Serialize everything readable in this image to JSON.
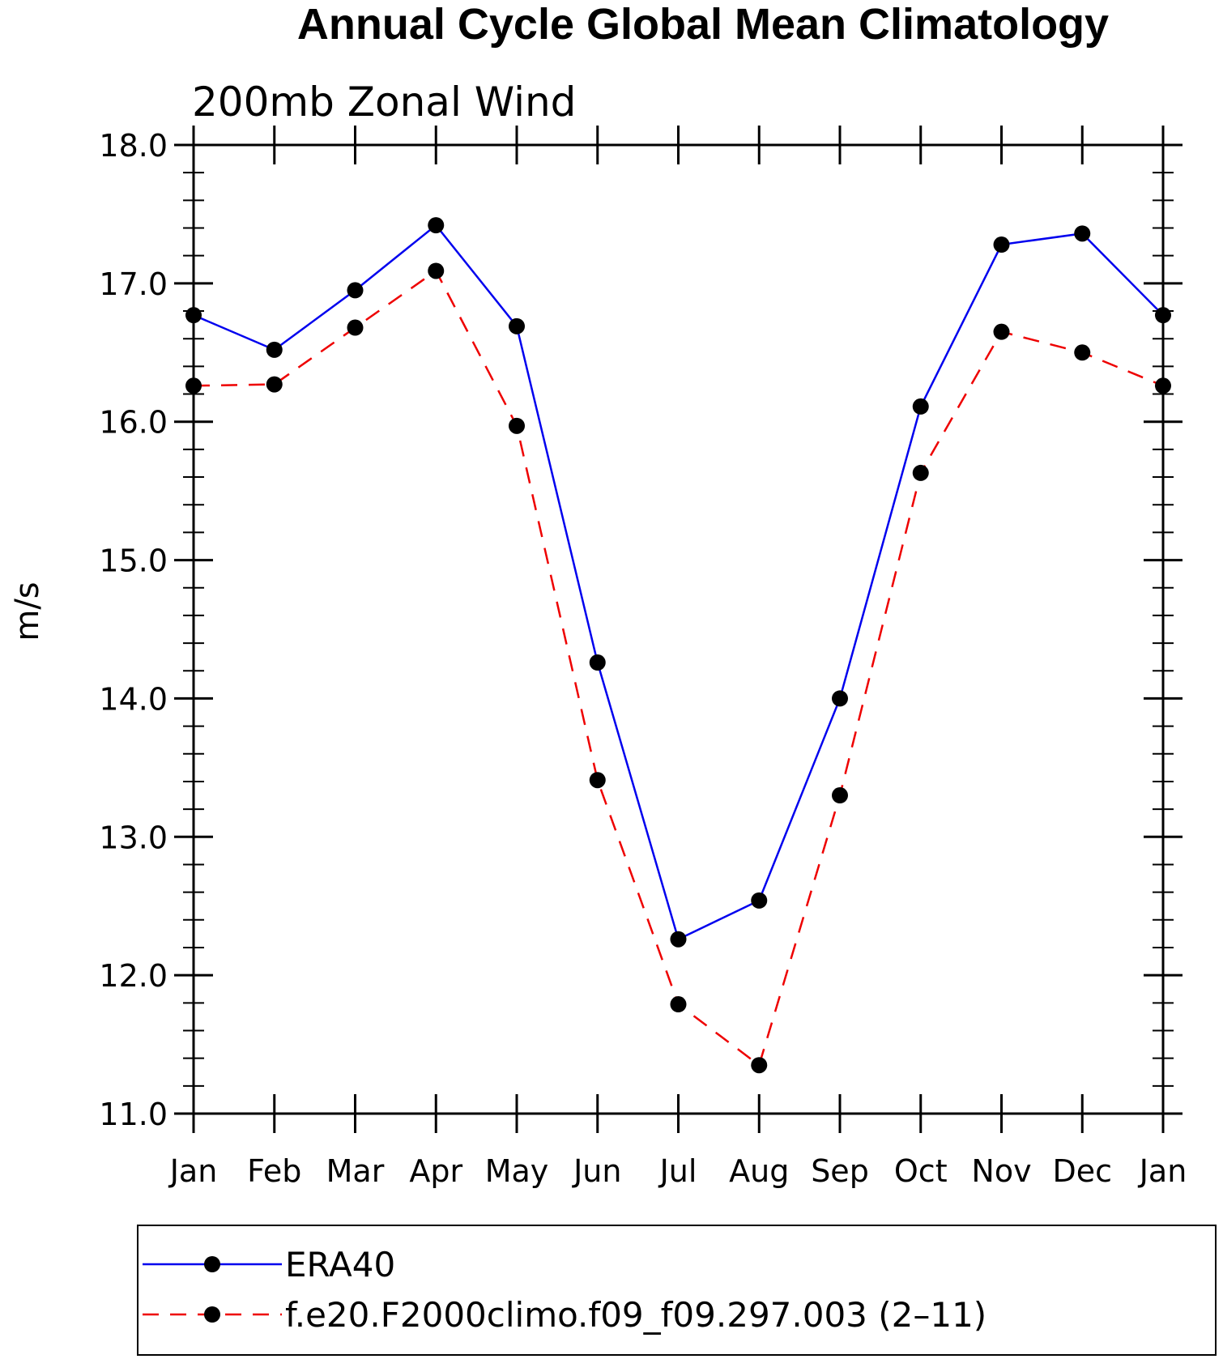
{
  "chart_data": {
    "type": "line",
    "title": "Annual Cycle Global Mean Climatology",
    "subtitle": "200mb Zonal Wind",
    "ylabel": "m/s",
    "xlabel": "",
    "ylim": [
      11.0,
      18.0
    ],
    "yticks": [
      "11.0",
      "12.0",
      "13.0",
      "14.0",
      "15.0",
      "16.0",
      "17.0",
      "18.0"
    ],
    "categories": [
      "Jan",
      "Feb",
      "Mar",
      "Apr",
      "May",
      "Jun",
      "Jul",
      "Aug",
      "Sep",
      "Oct",
      "Nov",
      "Dec",
      "Jan"
    ],
    "grid": false,
    "legend_position": "bottom",
    "series": [
      {
        "name": "ERA40",
        "color": "#0000ee",
        "style": "solid",
        "values": [
          16.77,
          16.52,
          16.95,
          17.42,
          16.69,
          14.26,
          12.26,
          12.54,
          14.0,
          16.11,
          17.28,
          17.36,
          16.77
        ]
      },
      {
        "name": "f.e20.F2000climo.f09_f09.297.003 (2–11)",
        "color": "#ee0000",
        "style": "dashed",
        "values": [
          16.26,
          16.27,
          16.68,
          17.09,
          15.97,
          13.41,
          11.79,
          11.35,
          13.3,
          15.63,
          16.65,
          16.5,
          16.26
        ]
      }
    ]
  }
}
